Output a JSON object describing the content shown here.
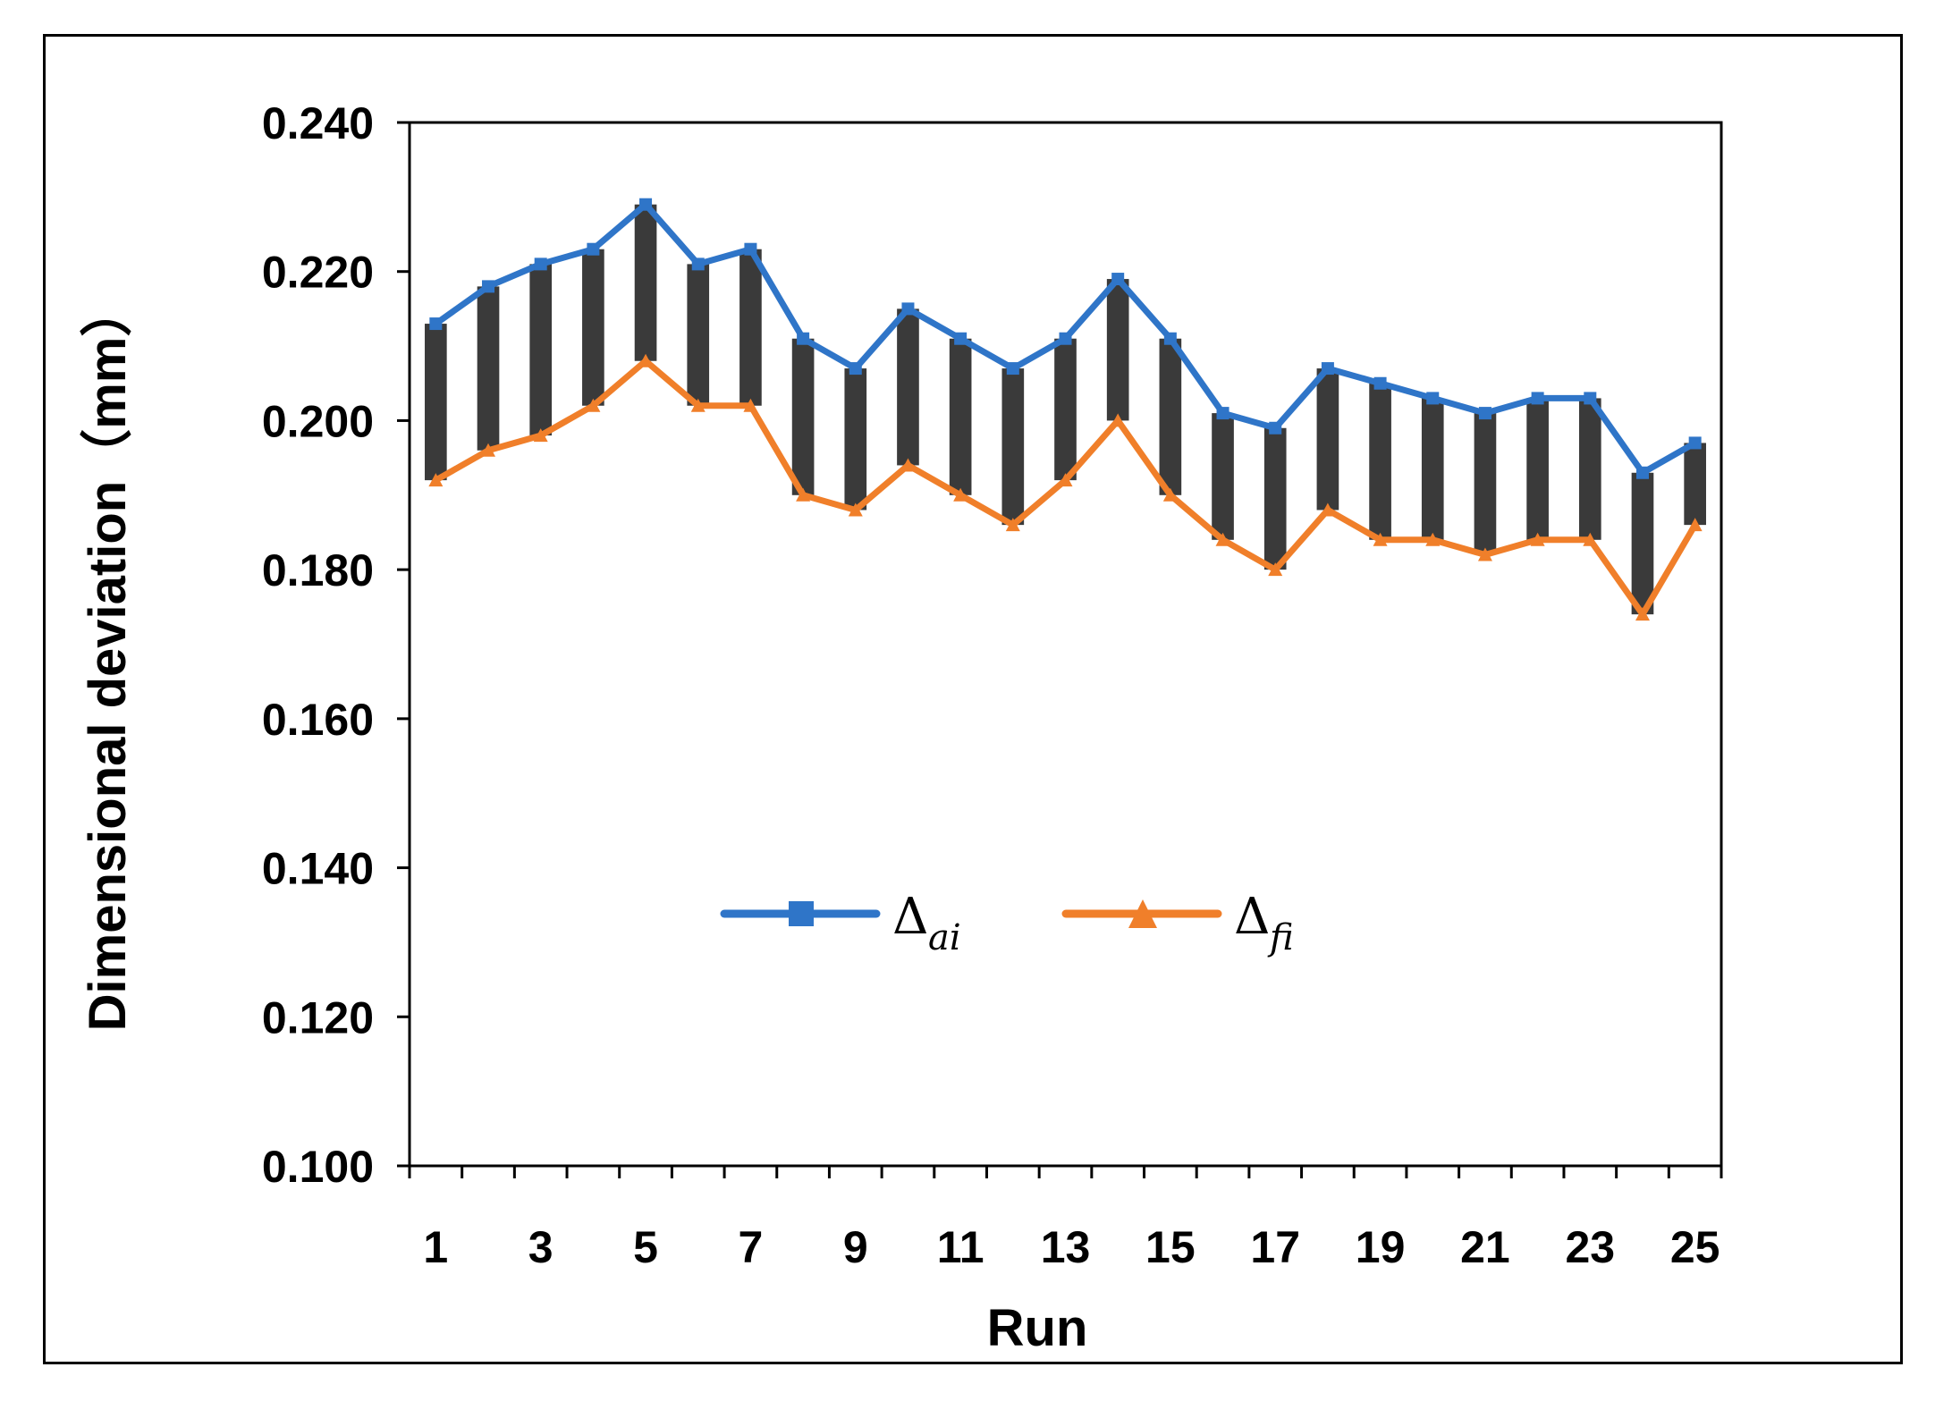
{
  "chart_data": {
    "type": "line",
    "xlabel": "Run",
    "ylabel": "Dimensional deviation（mm）",
    "ylim": [
      0.1,
      0.24
    ],
    "yticks": [
      "0.100",
      "0.120",
      "0.140",
      "0.160",
      "0.180",
      "0.200",
      "0.220",
      "0.240"
    ],
    "x": [
      1,
      2,
      3,
      4,
      5,
      6,
      7,
      8,
      9,
      10,
      11,
      12,
      13,
      14,
      15,
      16,
      17,
      18,
      19,
      20,
      21,
      22,
      23,
      24,
      25
    ],
    "xtick_labels": [
      "1",
      "3",
      "5",
      "7",
      "9",
      "11",
      "13",
      "15",
      "17",
      "19",
      "21",
      "23",
      "25"
    ],
    "series": [
      {
        "name": "Δai",
        "symbol": "Δ",
        "subscript": "ai",
        "color": "#2f75c8",
        "marker": "square",
        "values": [
          0.213,
          0.218,
          0.221,
          0.223,
          0.229,
          0.221,
          0.223,
          0.211,
          0.207,
          0.215,
          0.211,
          0.207,
          0.211,
          0.219,
          0.211,
          0.201,
          0.199,
          0.207,
          0.205,
          0.203,
          0.201,
          0.203,
          0.203,
          0.193,
          0.197
        ]
      },
      {
        "name": "Δfi",
        "symbol": "Δ",
        "subscript": "fi",
        "color": "#f07f2a",
        "marker": "triangle",
        "values": [
          0.192,
          0.196,
          0.198,
          0.202,
          0.208,
          0.202,
          0.202,
          0.19,
          0.188,
          0.194,
          0.19,
          0.186,
          0.192,
          0.2,
          0.19,
          0.184,
          0.18,
          0.188,
          0.184,
          0.184,
          0.182,
          0.184,
          0.184,
          0.174,
          0.186
        ]
      }
    ],
    "difference_bars": {
      "color": "#3a3a3a"
    },
    "legend": {
      "position": "center"
    },
    "grid": false
  }
}
